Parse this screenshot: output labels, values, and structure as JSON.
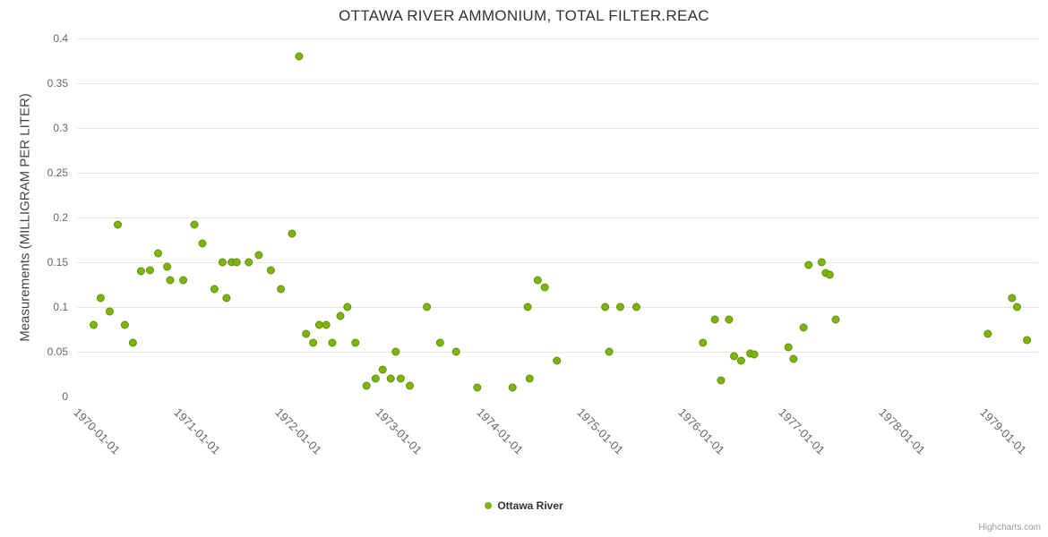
{
  "credits": "Highcharts.com",
  "chart_data": {
    "type": "scatter",
    "title": "OTTAWA RIVER AMMONIUM, TOTAL FILTER.REAC",
    "xlabel": "",
    "ylabel": "Measurements (MILLIGRAM PER LITER)",
    "legend_position": "bottom-center",
    "grid": "horizontal",
    "grid_color": "#e6e6e6",
    "axis_line_color": "#ccd6eb",
    "label_color": "#666666",
    "xaxis": {
      "min": 1969.875,
      "max": 1979.42,
      "ticks": [
        1970,
        1971,
        1972,
        1973,
        1974,
        1975,
        1976,
        1977,
        1978,
        1979
      ],
      "labels": [
        "1970-01-01",
        "1971-01-01",
        "1972-01-01",
        "1973-01-01",
        "1974-01-01",
        "1975-01-01",
        "1976-01-01",
        "1977-01-01",
        "1978-01-01",
        "1979-01-01"
      ]
    },
    "yaxis": {
      "min": 0,
      "max": 0.4,
      "ticks": [
        0,
        0.05,
        0.1,
        0.15,
        0.2,
        0.25,
        0.3,
        0.35,
        0.4
      ],
      "labels": [
        "0",
        "0.05",
        "0.1",
        "0.15",
        "0.2",
        "0.25",
        "0.3",
        "0.35",
        "0.4"
      ]
    },
    "series": [
      {
        "name": "Ottawa River",
        "color": "#7cb50e",
        "marker_stroke": "#648f0a",
        "points": [
          [
            1970.04,
            0.08
          ],
          [
            1970.11,
            0.11
          ],
          [
            1970.2,
            0.095
          ],
          [
            1970.28,
            0.192
          ],
          [
            1970.35,
            0.08
          ],
          [
            1970.43,
            0.06
          ],
          [
            1970.51,
            0.14
          ],
          [
            1970.6,
            0.141
          ],
          [
            1970.68,
            0.16
          ],
          [
            1970.77,
            0.145
          ],
          [
            1970.8,
            0.13
          ],
          [
            1970.93,
            0.13
          ],
          [
            1971.04,
            0.192
          ],
          [
            1971.12,
            0.171
          ],
          [
            1971.24,
            0.12
          ],
          [
            1971.32,
            0.15
          ],
          [
            1971.36,
            0.11
          ],
          [
            1971.41,
            0.15
          ],
          [
            1971.46,
            0.15
          ],
          [
            1971.58,
            0.15
          ],
          [
            1971.68,
            0.158
          ],
          [
            1971.8,
            0.141
          ],
          [
            1971.9,
            0.12
          ],
          [
            1972.01,
            0.182
          ],
          [
            1972.08,
            0.38
          ],
          [
            1972.15,
            0.07
          ],
          [
            1972.22,
            0.06
          ],
          [
            1972.28,
            0.08
          ],
          [
            1972.35,
            0.08
          ],
          [
            1972.41,
            0.06
          ],
          [
            1972.49,
            0.09
          ],
          [
            1972.56,
            0.1
          ],
          [
            1972.64,
            0.06
          ],
          [
            1972.75,
            0.012
          ],
          [
            1972.84,
            0.02
          ],
          [
            1972.91,
            0.03
          ],
          [
            1972.99,
            0.02
          ],
          [
            1973.04,
            0.05
          ],
          [
            1973.09,
            0.02
          ],
          [
            1973.18,
            0.012
          ],
          [
            1973.35,
            0.1
          ],
          [
            1973.48,
            0.06
          ],
          [
            1973.64,
            0.05
          ],
          [
            1973.85,
            0.01
          ],
          [
            1974.2,
            0.01
          ],
          [
            1974.35,
            0.1
          ],
          [
            1974.37,
            0.02
          ],
          [
            1974.45,
            0.13
          ],
          [
            1974.52,
            0.122
          ],
          [
            1974.64,
            0.04
          ],
          [
            1975.12,
            0.1
          ],
          [
            1975.16,
            0.05
          ],
          [
            1975.27,
            0.1
          ],
          [
            1975.43,
            0.1
          ],
          [
            1976.09,
            0.06
          ],
          [
            1976.21,
            0.086
          ],
          [
            1976.27,
            0.018
          ],
          [
            1976.35,
            0.086
          ],
          [
            1976.4,
            0.045
          ],
          [
            1976.47,
            0.04
          ],
          [
            1976.56,
            0.048
          ],
          [
            1976.6,
            0.047
          ],
          [
            1976.94,
            0.055
          ],
          [
            1976.99,
            0.042
          ],
          [
            1977.09,
            0.077
          ],
          [
            1977.14,
            0.147
          ],
          [
            1977.27,
            0.15
          ],
          [
            1977.31,
            0.138
          ],
          [
            1977.35,
            0.136
          ],
          [
            1977.41,
            0.086
          ],
          [
            1978.92,
            0.07
          ],
          [
            1979.16,
            0.11
          ],
          [
            1979.21,
            0.1
          ],
          [
            1979.31,
            0.063
          ]
        ]
      }
    ]
  }
}
